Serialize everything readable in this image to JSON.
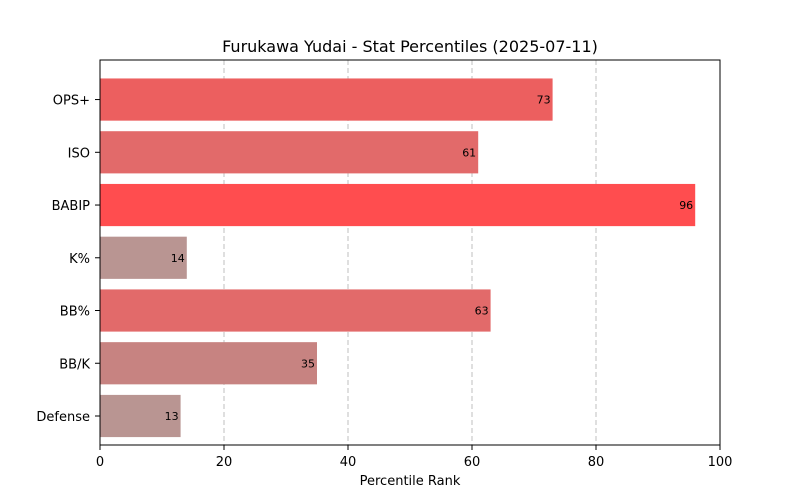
{
  "chart_data": {
    "type": "bar",
    "orientation": "horizontal",
    "title": "Furukawa Yudai - Stat Percentiles (2025-07-11)",
    "xlabel": "Percentile Rank",
    "ylabel": "",
    "xlim": [
      0,
      100
    ],
    "xticks": [
      0,
      20,
      40,
      60,
      80,
      100
    ],
    "grid": "vertical dashed",
    "categories": [
      "OPS+",
      "ISO",
      "BABIP",
      "K%",
      "BB%",
      "BB/K",
      "Defense"
    ],
    "values": [
      73,
      61,
      96,
      14,
      63,
      35,
      13
    ],
    "colors": [
      "#ec5f5f",
      "#e26a6a",
      "#ff4d4f",
      "#b99592",
      "#e26a6a",
      "#c78381",
      "#b99592"
    ]
  }
}
